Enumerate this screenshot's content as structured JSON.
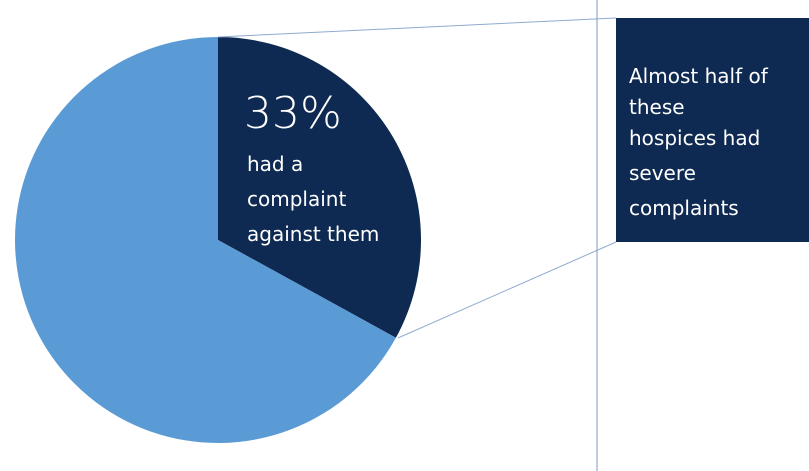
{
  "chart_data": {
    "type": "pie",
    "slices": [
      {
        "value": 33,
        "color": "#0f2a52"
      },
      {
        "value": 67,
        "color": "#5b9bd5"
      }
    ],
    "highlight": {
      "percent_label": "33%",
      "text_lines": [
        "had a",
        "complaint",
        "against them"
      ]
    },
    "callout": {
      "text_lines": [
        "Almost half of",
        "these",
        "hospices had",
        "severe",
        "complaints"
      ],
      "background": "#0f2a52",
      "text_color": "#ffffff"
    },
    "connector_color": "#8faad0",
    "divider_color": "#7f9ab8"
  }
}
